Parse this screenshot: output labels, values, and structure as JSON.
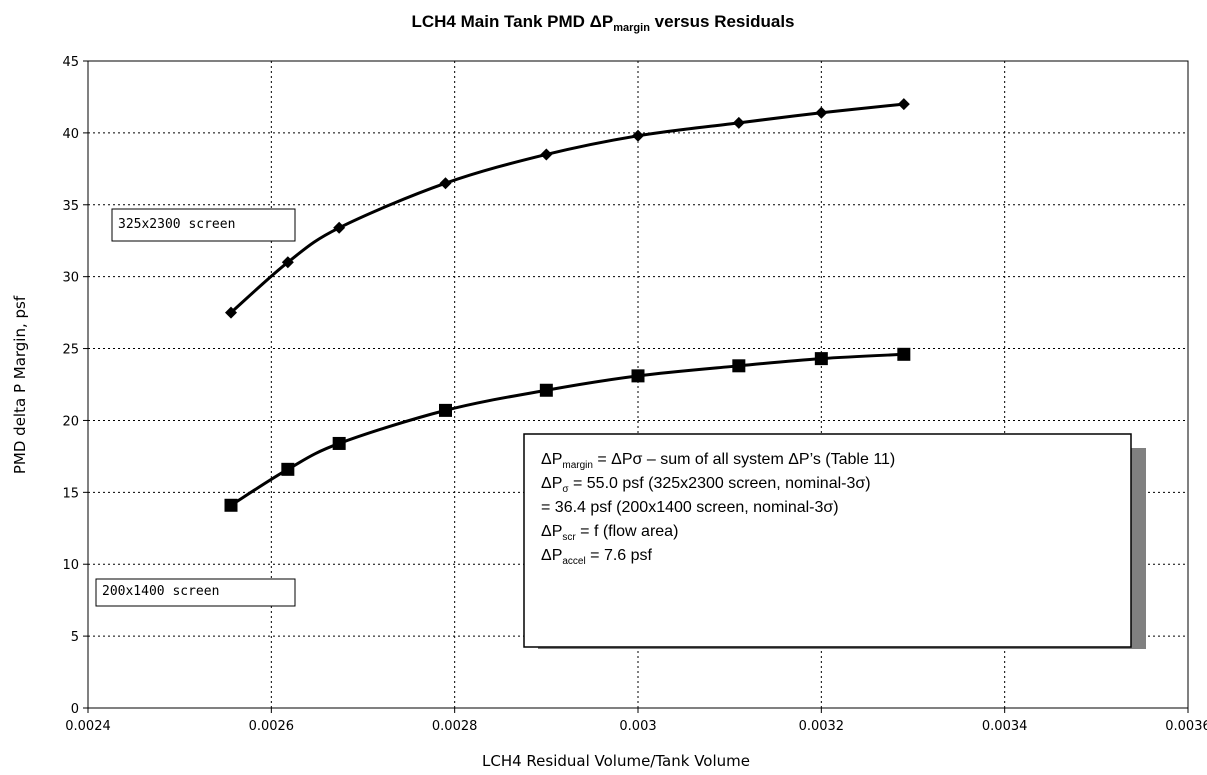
{
  "chart_data": {
    "type": "line",
    "title": {
      "main": "LCH4 Main Tank PMD ΔP",
      "sub": "margin",
      "rest": " versus Residuals"
    },
    "xlabel": "LCH4 Residual Volume/Tank Volume",
    "ylabel": "PMD delta P Margin, psf",
    "xlim": [
      0.0024,
      0.0036
    ],
    "ylim": [
      0,
      45
    ],
    "xticks": [
      0.0024,
      0.0026,
      0.0028,
      0.003,
      0.0032,
      0.0034,
      0.0036
    ],
    "xtick_labels": [
      "0.0024",
      "0.0026",
      "0.0028",
      "0.003",
      "0.0032",
      "0.0034",
      "0.0036"
    ],
    "yticks": [
      0,
      5,
      10,
      15,
      20,
      25,
      30,
      35,
      40,
      45
    ],
    "ytick_labels": [
      "0",
      "5",
      "10",
      "15",
      "20",
      "25",
      "30",
      "35",
      "40",
      "45"
    ],
    "grid": true,
    "series": [
      {
        "name": "325x2300 screen",
        "marker": "diamond",
        "x": [
          0.002556,
          0.002618,
          0.002674,
          0.00279,
          0.0029,
          0.003,
          0.00311,
          0.0032,
          0.00329
        ],
        "values": [
          27.5,
          31.0,
          33.4,
          36.5,
          38.5,
          39.8,
          40.7,
          41.4,
          42.0
        ]
      },
      {
        "name": "200x1400 screen",
        "marker": "square",
        "x": [
          0.002556,
          0.002618,
          0.002674,
          0.00279,
          0.0029,
          0.003,
          0.00311,
          0.0032,
          0.00329
        ],
        "values": [
          14.1,
          16.6,
          18.4,
          20.7,
          22.1,
          23.1,
          23.8,
          24.3,
          24.6
        ]
      }
    ],
    "annotation": {
      "lines": [
        {
          "base": "ΔP",
          "sub": "margin",
          "text": " = ΔPσ – sum of all system ΔP’s (Table 11)"
        },
        {
          "base": "ΔP",
          "sub": "σ",
          "text": " = 55.0 psf (325x2300 screen, nominal-3σ)"
        },
        {
          "base": "",
          "sub": "",
          "text": " = 36.4 psf (200x1400 screen, nominal-3σ)"
        },
        {
          "base": "ΔP",
          "sub": "scr",
          "text": " = f (flow area)"
        },
        {
          "base": "ΔP",
          "sub": "accel",
          "text": " = 7.6 psf"
        }
      ]
    }
  }
}
